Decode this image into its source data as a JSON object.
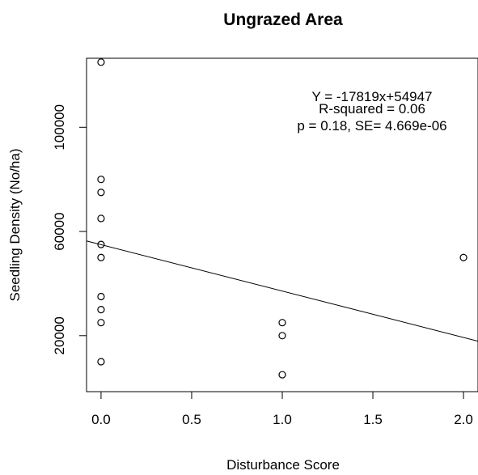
{
  "chart_data": {
    "type": "scatter",
    "title": "Ungrazed Area",
    "xlabel": "Disturbance Score",
    "ylabel": "Seedling Density (No/ha)",
    "xlim": [
      -0.08,
      2.08
    ],
    "ylim": [
      -1500,
      126500
    ],
    "x_ticks": [
      "0.0",
      "0.5",
      "1.0",
      "1.5",
      "2.0"
    ],
    "x_tick_values": [
      0,
      0.5,
      1,
      1.5,
      2
    ],
    "y_ticks": [
      "20000",
      "60000",
      "100000"
    ],
    "y_tick_values": [
      20000,
      60000,
      100000
    ],
    "points": [
      {
        "x": 0,
        "y": 125000
      },
      {
        "x": 0,
        "y": 80000
      },
      {
        "x": 0,
        "y": 75000
      },
      {
        "x": 0,
        "y": 65000
      },
      {
        "x": 0,
        "y": 55000
      },
      {
        "x": 0,
        "y": 50000
      },
      {
        "x": 0,
        "y": 35000
      },
      {
        "x": 0,
        "y": 30000
      },
      {
        "x": 0,
        "y": 25000
      },
      {
        "x": 0,
        "y": 10000
      },
      {
        "x": 1,
        "y": 25000
      },
      {
        "x": 1,
        "y": 20000
      },
      {
        "x": 1,
        "y": 5000
      },
      {
        "x": 2,
        "y": 50000
      }
    ],
    "regression": {
      "slope": -17819,
      "intercept": 54947
    },
    "annotations": [
      "Y = -17819x+54947",
      "R-squared = 0.06",
      "p = 0.18, SE= 4.669e-06"
    ],
    "grid": false,
    "legend": "none",
    "colors": {
      "point_stroke": "#000000",
      "line": "#000000",
      "background": "#ffffff"
    }
  }
}
